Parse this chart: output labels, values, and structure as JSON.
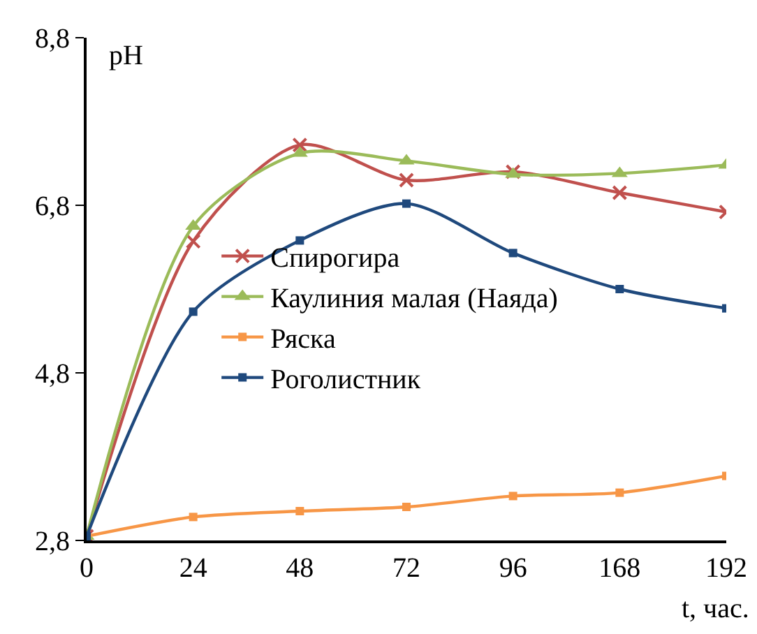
{
  "chart_data": {
    "type": "line",
    "xlabel": "t, час.",
    "ylabel": "pH",
    "categories": [
      "0",
      "24",
      "48",
      "72",
      "96",
      "168",
      "192"
    ],
    "ylim": [
      2.8,
      8.8
    ],
    "yticks": [
      {
        "value": 2.8,
        "label": "2,8"
      },
      {
        "value": 4.8,
        "label": "4,8"
      },
      {
        "value": 6.8,
        "label": "6,8"
      },
      {
        "value": 8.8,
        "label": "8,8"
      }
    ],
    "grid": false,
    "legend": "center",
    "line_style": "solid",
    "series": [
      {
        "name": "Спирогира",
        "color": "#c0504d",
        "marker": "cross",
        "values": [
          2.85,
          6.37,
          7.52,
          7.1,
          7.2,
          6.95,
          6.72
        ]
      },
      {
        "name": "Каулиния малая (Наяда)",
        "color": "#9bbb59",
        "marker": "triangle",
        "values": [
          2.85,
          6.55,
          7.42,
          7.33,
          7.17,
          7.18,
          7.28
        ]
      },
      {
        "name": "Ряска",
        "color": "#f79646",
        "marker": "square",
        "values": [
          2.85,
          3.08,
          3.15,
          3.2,
          3.33,
          3.37,
          3.57
        ]
      },
      {
        "name": "Роголистник",
        "color": "#1f497d",
        "marker": "square",
        "values": [
          2.85,
          5.53,
          6.38,
          6.82,
          6.23,
          5.8,
          5.57
        ]
      }
    ]
  }
}
